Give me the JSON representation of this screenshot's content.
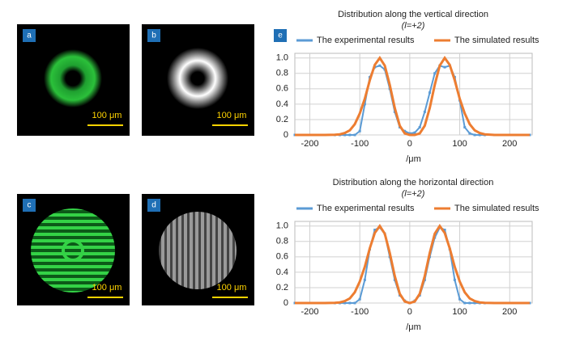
{
  "panels": [
    {
      "label": "a",
      "scale_bar": "100 μm"
    },
    {
      "label": "b",
      "scale_bar": "100 μm"
    },
    {
      "label": "c",
      "scale_bar": "100 μm"
    },
    {
      "label": "d",
      "scale_bar": "100 μm"
    },
    {
      "label": "e"
    }
  ],
  "chart_data": [
    {
      "type": "line",
      "title": "Distribution along the vertical direction",
      "subtitle": "(l=+2)",
      "x_label": "/μm",
      "x": [
        -230,
        -200,
        -170,
        -150,
        -140,
        -130,
        -120,
        -110,
        -100,
        -90,
        -80,
        -70,
        -60,
        -50,
        -40,
        -30,
        -20,
        -10,
        0,
        10,
        20,
        30,
        40,
        50,
        60,
        70,
        80,
        90,
        100,
        110,
        120,
        130,
        140,
        150,
        170,
        200,
        240
      ],
      "series": [
        {
          "name": "The experimental results",
          "color": "#5b9bd5",
          "values": [
            0,
            0,
            0,
            0,
            0,
            0,
            0,
            0,
            0.05,
            0.4,
            0.75,
            0.88,
            0.9,
            0.85,
            0.6,
            0.3,
            0.1,
            0.05,
            0.02,
            0.03,
            0.1,
            0.3,
            0.55,
            0.8,
            0.9,
            0.88,
            0.9,
            0.75,
            0.45,
            0.1,
            0.02,
            0,
            0,
            0,
            0,
            0,
            0
          ]
        },
        {
          "name": "The simulated results",
          "color": "#ed7d31",
          "values": [
            0,
            0,
            0,
            0.003,
            0.008,
            0.025,
            0.06,
            0.14,
            0.28,
            0.47,
            0.71,
            0.91,
            1,
            0.9,
            0.65,
            0.35,
            0.12,
            0.02,
            0,
            0,
            0.02,
            0.12,
            0.35,
            0.65,
            0.9,
            1,
            0.91,
            0.71,
            0.47,
            0.28,
            0.14,
            0.06,
            0.025,
            0.008,
            0,
            0,
            0
          ]
        }
      ],
      "xlim": [
        -230,
        245
      ],
      "xticks": [
        -200,
        -100,
        0,
        100,
        200
      ],
      "ylim": [
        0,
        1.06
      ],
      "yticks": [
        0,
        0.2,
        0.4,
        0.6,
        0.8,
        {
          "value": 1,
          "label": "1.0"
        }
      ],
      "grid": true,
      "legend": "top"
    },
    {
      "type": "line",
      "title": "Distribution along the horizontal direction",
      "subtitle": "(l=+2)",
      "x_label": "/μm",
      "x": [
        -230,
        -200,
        -170,
        -150,
        -140,
        -130,
        -120,
        -110,
        -100,
        -90,
        -80,
        -70,
        -60,
        -50,
        -40,
        -30,
        -20,
        -10,
        0,
        10,
        20,
        30,
        40,
        50,
        60,
        70,
        80,
        90,
        100,
        110,
        120,
        130,
        140,
        150,
        170,
        200,
        240
      ],
      "series": [
        {
          "name": "The experimental results",
          "color": "#5b9bd5",
          "values": [
            0,
            0,
            0,
            0,
            0,
            0,
            0,
            0,
            0.05,
            0.3,
            0.7,
            0.95,
            0.98,
            0.9,
            0.6,
            0.3,
            0.1,
            0.03,
            0,
            0.03,
            0.1,
            0.3,
            0.6,
            0.85,
            0.98,
            0.95,
            0.7,
            0.3,
            0.05,
            0,
            0,
            0,
            0,
            0,
            0,
            0,
            0
          ]
        },
        {
          "name": "The simulated results",
          "color": "#ed7d31",
          "values": [
            0,
            0,
            0,
            0.003,
            0.008,
            0.025,
            0.06,
            0.14,
            0.28,
            0.47,
            0.71,
            0.91,
            1,
            0.9,
            0.65,
            0.35,
            0.12,
            0.02,
            0,
            0.02,
            0.12,
            0.35,
            0.65,
            0.9,
            1,
            0.91,
            0.71,
            0.47,
            0.28,
            0.14,
            0.06,
            0.025,
            0.008,
            0.003,
            0,
            0,
            0
          ]
        }
      ],
      "xlim": [
        -230,
        245
      ],
      "xticks": [
        -200,
        -100,
        0,
        100,
        200
      ],
      "ylim": [
        0,
        1.06
      ],
      "yticks": [
        0,
        0.2,
        0.4,
        0.6,
        0.8,
        {
          "value": 1,
          "label": "1.0"
        }
      ],
      "grid": true,
      "legend": "top"
    }
  ]
}
